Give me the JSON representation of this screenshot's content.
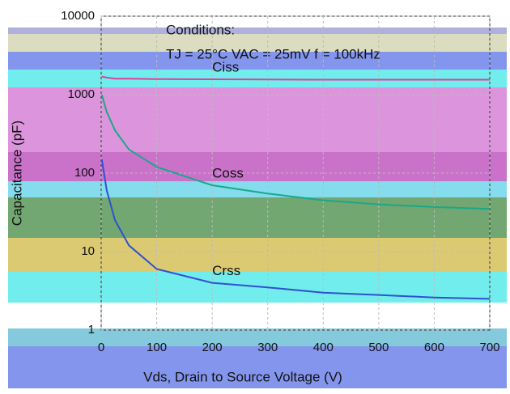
{
  "chart_data": {
    "type": "line",
    "title": "Conditions:",
    "subtitle": "TJ = 25°C  VAC = 25mV  f = 100kHz",
    "x_label": "Vds, Drain to Source Voltage (V)",
    "y_label": "Capacitance (pF)",
    "x": [
      1,
      10,
      25,
      50,
      100,
      200,
      300,
      400,
      500,
      600,
      700
    ],
    "series": [
      {
        "name": "Ciss",
        "color": "#e0409a",
        "values": [
          1700,
          1650,
          1600,
          1600,
          1580,
          1570,
          1560,
          1550,
          1550,
          1550,
          1550
        ]
      },
      {
        "name": "Coss",
        "color": "#1aa88a",
        "values": [
          1000,
          600,
          350,
          200,
          120,
          70,
          55,
          45,
          40,
          37,
          35
        ]
      },
      {
        "name": "Crss",
        "color": "#3050d0",
        "values": [
          150,
          60,
          25,
          12,
          6,
          4,
          3.5,
          3,
          2.8,
          2.6,
          2.5
        ]
      }
    ],
    "xlim": [
      0,
      700
    ],
    "xticks": [
      0,
      100,
      200,
      300,
      400,
      500,
      600,
      700
    ],
    "ylim": [
      1,
      10000
    ],
    "yticks": [
      1,
      10,
      100,
      1000,
      10000
    ],
    "log_y": true,
    "grid": true
  }
}
